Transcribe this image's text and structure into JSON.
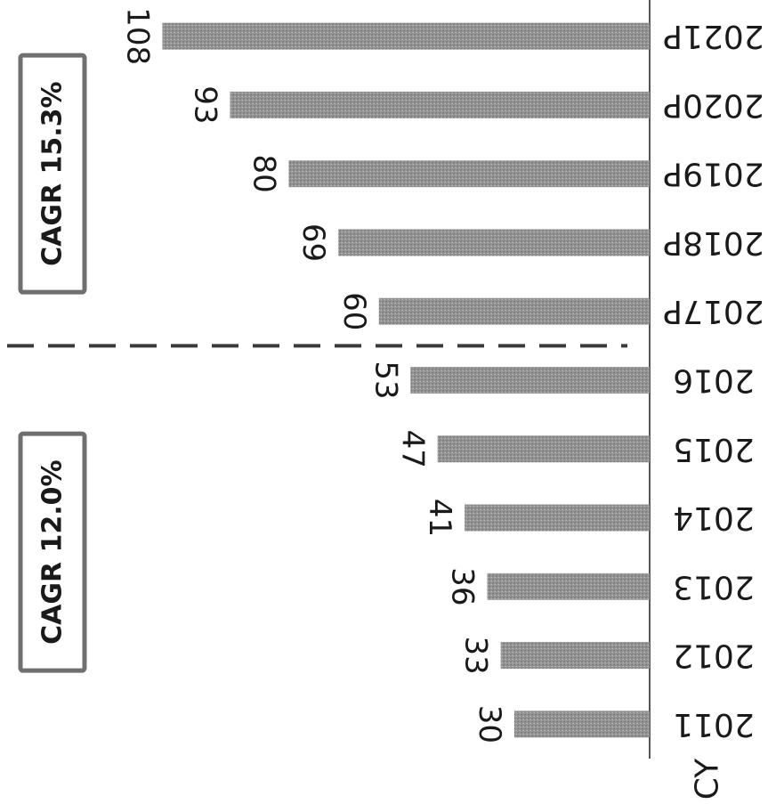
{
  "chart_data": {
    "type": "bar",
    "orientation": "horizontal",
    "rotation": "image rotated 90 degrees clockwise",
    "categories": [
      "2011",
      "2012",
      "2013",
      "2014",
      "2015",
      "2016",
      "2017P",
      "2018P",
      "2019P",
      "2020P",
      "2021P"
    ],
    "values": [
      30,
      33,
      36,
      41,
      47,
      53,
      60,
      69,
      80,
      93,
      108
    ],
    "xlabel": "CY",
    "ylabel": "",
    "title": "",
    "ylim": [
      0,
      115
    ],
    "grid": false,
    "legend": "none",
    "divider_between": [
      "2016",
      "2017P"
    ],
    "annotations": [
      {
        "text": "CAGR 12.0%",
        "spans": [
          "2011",
          "2016"
        ]
      },
      {
        "text": "CAGR 15.3%",
        "spans": [
          "2017P",
          "2021P"
        ]
      }
    ],
    "colors": {
      "bar": "#8f8f8f",
      "axis": "#555555",
      "divider": "#3a3a3a",
      "box_border": "#6f6f6f"
    }
  }
}
